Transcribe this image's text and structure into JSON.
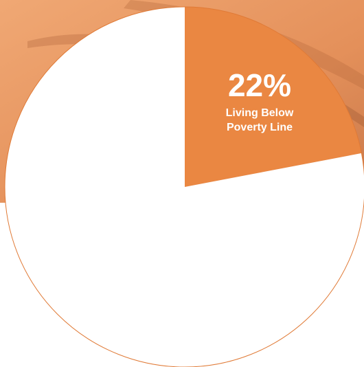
{
  "chart_data": {
    "type": "pie",
    "categories": [
      "Living Below Poverty Line",
      null
    ],
    "values": [
      22,
      78
    ],
    "value_labels": [
      "22%",
      null
    ],
    "colors": [
      "#ea8742",
      "#ffffff"
    ],
    "edge_color": "#e07a36"
  }
}
